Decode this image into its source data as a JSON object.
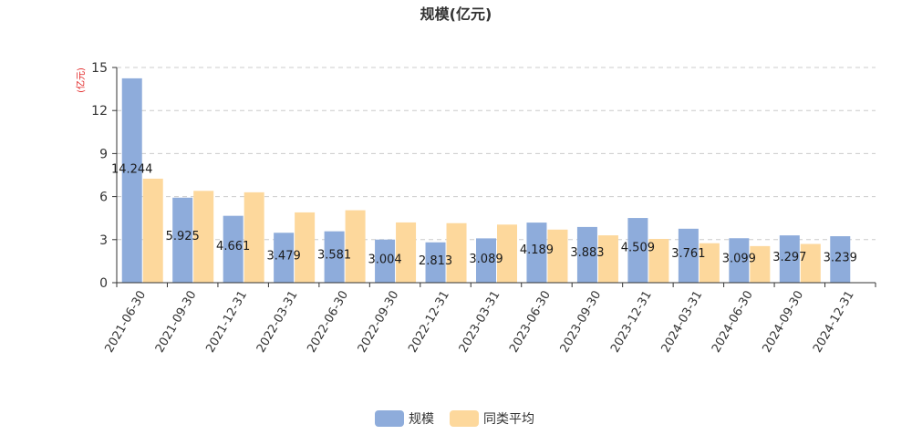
{
  "chart_data": {
    "type": "bar",
    "title": "规模(亿元)",
    "ylabel": "(亿元)",
    "xlabel": "",
    "ylim": [
      0,
      15
    ],
    "yticks": [
      0,
      3,
      6,
      9,
      12,
      15
    ],
    "grid": true,
    "legend_position": "bottom-center",
    "categories": [
      "2021-06-30",
      "2021-09-30",
      "2021-12-31",
      "2022-03-31",
      "2022-06-30",
      "2022-09-30",
      "2022-12-31",
      "2023-03-31",
      "2023-06-30",
      "2023-09-30",
      "2023-12-31",
      "2024-03-31",
      "2024-06-30",
      "2024-09-30",
      "2024-12-31"
    ],
    "series": [
      {
        "name": "规模",
        "color": "#8eacdb",
        "values": [
          14.244,
          5.925,
          4.661,
          3.479,
          3.581,
          3.004,
          2.813,
          3.089,
          4.189,
          3.883,
          4.509,
          3.761,
          3.099,
          3.297,
          3.239
        ],
        "labels": [
          "14.244",
          "5.925",
          "4.661",
          "3.479",
          "3.581",
          "3.004",
          "2.813",
          "3.089",
          "4.189",
          "3.883",
          "4.509",
          "3.761",
          "3.099",
          "3.297",
          "3.239"
        ]
      },
      {
        "name": "同类平均",
        "color": "#fdd89c",
        "values": [
          7.25,
          6.4,
          6.3,
          4.9,
          5.05,
          4.2,
          4.15,
          4.05,
          3.7,
          3.3,
          3.05,
          2.75,
          2.55,
          2.7,
          null
        ]
      }
    ]
  }
}
